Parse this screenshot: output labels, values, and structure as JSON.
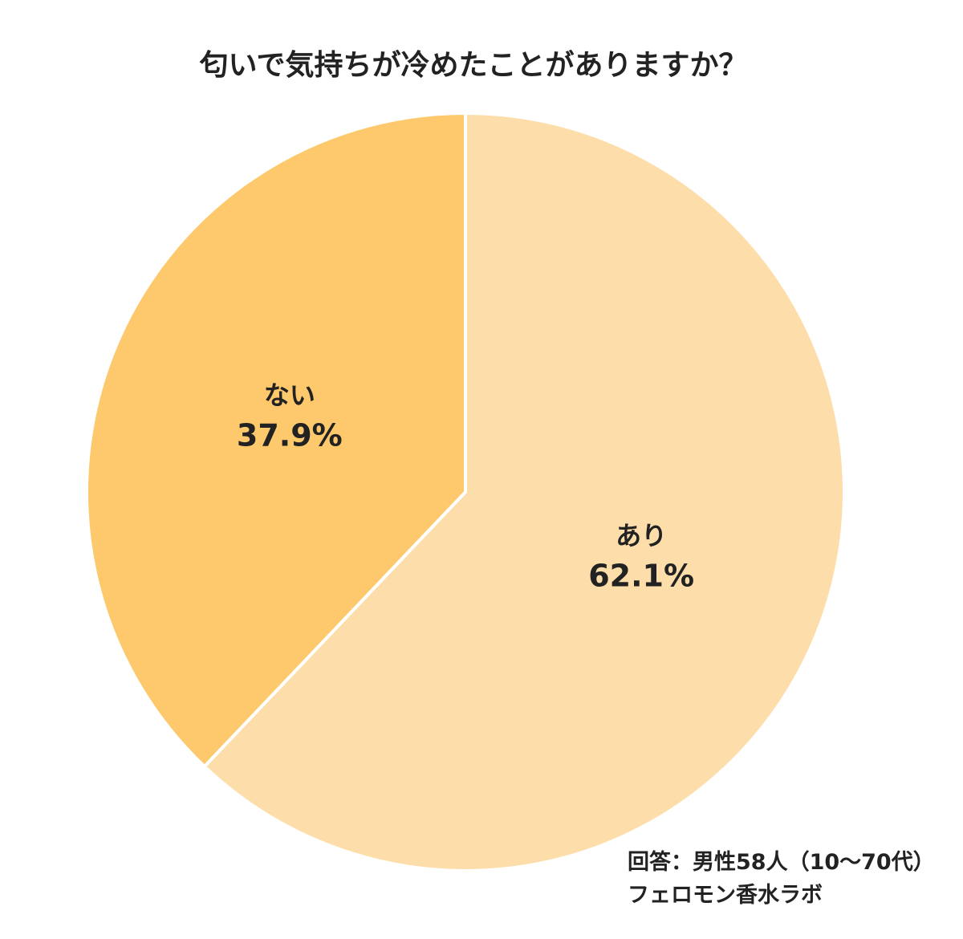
{
  "chart_data": {
    "type": "pie",
    "title": "匂いで気持ちが冷めたことがありますか？",
    "slices": [
      {
        "label": "あり",
        "value": 62.1,
        "value_label": "62.1%",
        "color": "#FDDDAA"
      },
      {
        "label": "ない",
        "value": 37.9,
        "value_label": "37.9%",
        "color": "#FDC96C"
      }
    ],
    "start_angle": "top",
    "direction": "clockwise",
    "legend": "none"
  },
  "notes": {
    "respondents": "回答：男性58人（10～70代）",
    "source": "フェロモン香水ラボ"
  }
}
